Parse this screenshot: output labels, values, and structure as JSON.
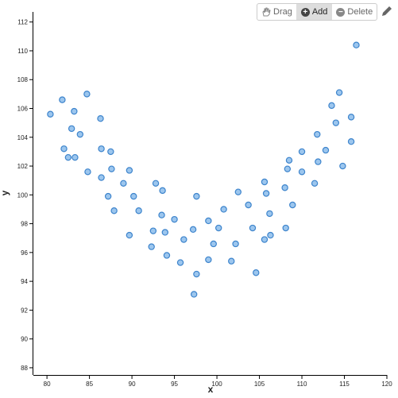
{
  "toolbar": {
    "buttons": [
      "Drag",
      "Add",
      "Delete"
    ]
  },
  "chart_data": {
    "type": "scatter",
    "x_label": "x",
    "y_label": "y",
    "color": "#9cc6ee",
    "edge_color": "#3d84cc",
    "xlim": [
      78.4,
      120
    ],
    "ylim": [
      87.5,
      112.7
    ],
    "xticks": [
      80,
      85,
      90,
      95,
      100,
      105,
      110,
      115,
      120
    ],
    "yticks": [
      88,
      90,
      92,
      94,
      96,
      98,
      100,
      102,
      104,
      106,
      108,
      110,
      112
    ],
    "x": [
      80.4,
      81.8,
      82.0,
      82.5,
      82.9,
      83.2,
      83.3,
      83.9,
      84.7,
      84.8,
      86.3,
      86.4,
      86.4,
      87.5,
      87.6,
      87.2,
      87.9,
      89.0,
      89.7,
      90.2,
      89.7,
      90.8,
      92.8,
      93.6,
      93.5,
      92.5,
      93.9,
      92.3,
      94.1,
      95.0,
      95.7,
      96.1,
      97.2,
      97.6,
      97.6,
      97.3,
      99.0,
      99.0,
      99.6,
      100.2,
      100.8,
      101.7,
      102.2,
      102.5,
      103.7,
      104.2,
      104.6,
      105.6,
      105.8,
      105.6,
      106.3,
      106.2,
      108.0,
      108.1,
      108.3,
      108.5,
      108.9,
      110.0,
      110.0,
      111.5,
      111.8,
      111.9,
      112.8,
      113.5,
      114.0,
      114.4,
      114.8,
      115.8,
      115.8,
      116.4
    ],
    "y": [
      105.6,
      106.6,
      103.2,
      102.6,
      104.6,
      105.8,
      102.6,
      104.2,
      107.0,
      101.6,
      105.3,
      103.2,
      101.2,
      103.0,
      101.8,
      99.9,
      98.9,
      100.8,
      101.7,
      99.9,
      97.2,
      98.9,
      100.8,
      100.3,
      98.6,
      97.5,
      97.4,
      96.4,
      95.8,
      98.3,
      95.3,
      96.9,
      97.6,
      99.9,
      94.5,
      93.1,
      98.2,
      95.5,
      96.6,
      97.7,
      99.0,
      95.4,
      96.6,
      100.2,
      99.3,
      97.7,
      94.6,
      100.9,
      100.1,
      96.9,
      97.2,
      98.7,
      100.5,
      97.7,
      101.8,
      102.4,
      99.3,
      103.0,
      101.6,
      100.8,
      104.2,
      102.3,
      103.1,
      106.2,
      105.0,
      107.1,
      102.0,
      105.4,
      103.7,
      110.4
    ]
  }
}
